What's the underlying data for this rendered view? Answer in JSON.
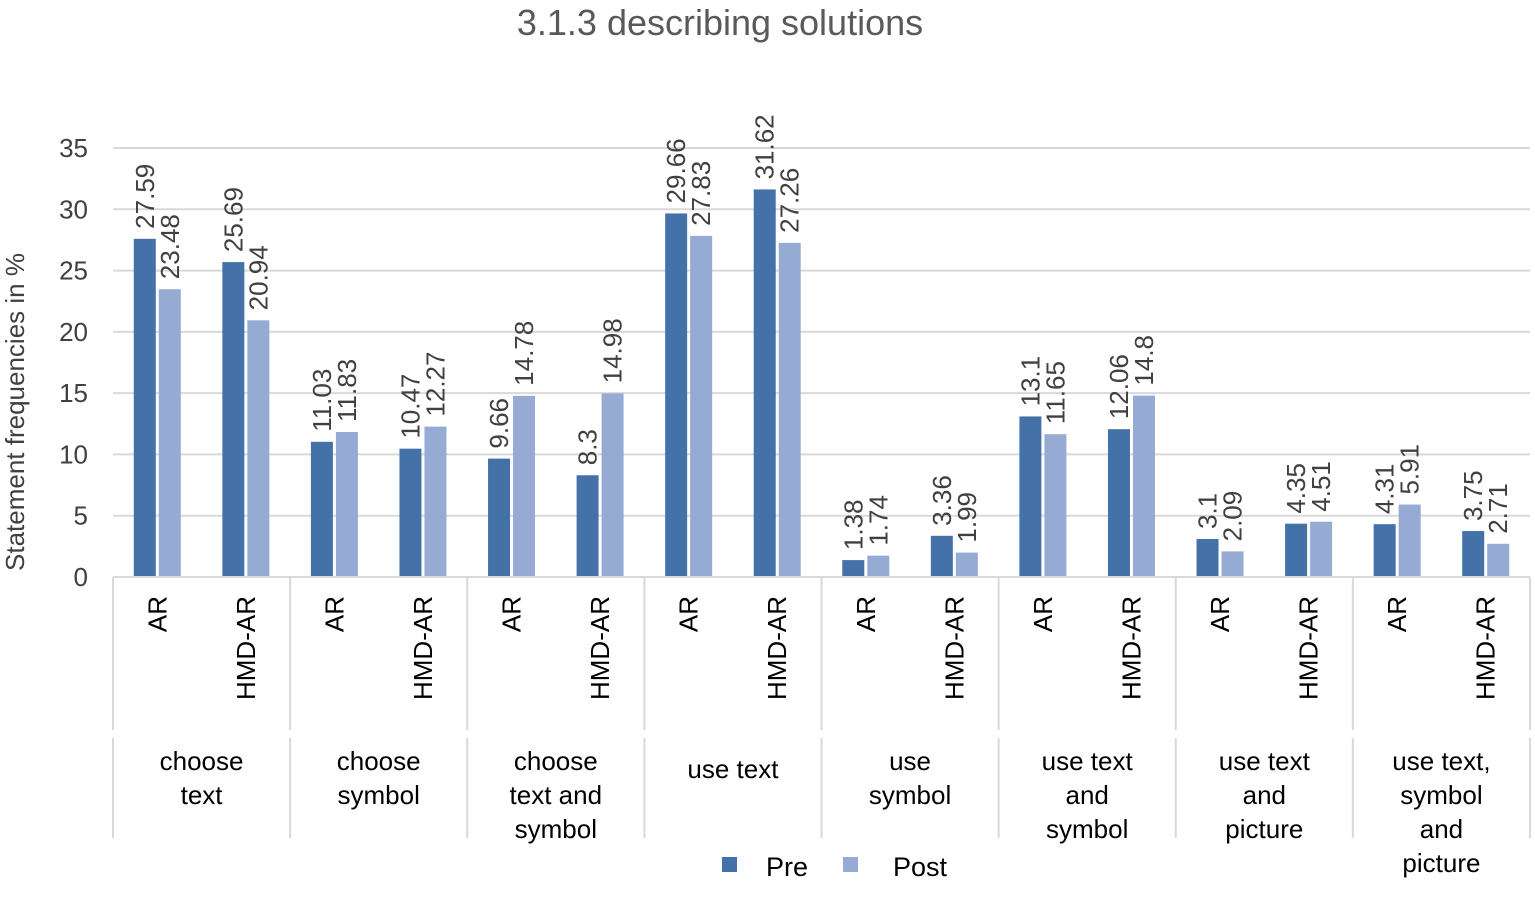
{
  "chart_data": {
    "type": "bar",
    "title": "3.1.3 describing solutions",
    "ylabel": "Statement frequencies in %",
    "ylim": [
      0,
      35
    ],
    "yticks": [
      0,
      5,
      10,
      15,
      20,
      25,
      30,
      35
    ],
    "grid": true,
    "legend_position": "bottom",
    "groups": [
      {
        "label": "choose text",
        "lines": [
          "choose",
          "text"
        ]
      },
      {
        "label": "choose symbol",
        "lines": [
          "choose",
          "symbol"
        ]
      },
      {
        "label": "choose text and symbol",
        "lines": [
          "choose",
          "text and",
          "symbol"
        ]
      },
      {
        "label": "use text",
        "lines": [
          "use text"
        ]
      },
      {
        "label": "use symbol",
        "lines": [
          "use",
          "symbol"
        ]
      },
      {
        "label": "use text and symbol",
        "lines": [
          "use text",
          "and",
          "symbol"
        ]
      },
      {
        "label": "use text and picture",
        "lines": [
          "use text",
          "and",
          "picture"
        ]
      },
      {
        "label": "use text, symbol and picture",
        "lines": [
          "use text,",
          "symbol",
          "and",
          "picture"
        ]
      }
    ],
    "subcategories": [
      "AR",
      "HMD-AR"
    ],
    "series": [
      {
        "name": "Pre",
        "color": "#4472a8",
        "values": [
          27.59,
          25.69,
          11.03,
          10.47,
          9.66,
          8.3,
          29.66,
          31.62,
          1.38,
          3.36,
          13.1,
          12.06,
          3.1,
          4.35,
          4.31,
          3.75
        ]
      },
      {
        "name": "Post",
        "color": "#95abd3",
        "values": [
          23.48,
          20.94,
          11.83,
          12.27,
          14.78,
          14.98,
          27.83,
          27.26,
          1.74,
          1.99,
          11.65,
          14.8,
          2.09,
          4.51,
          5.91,
          2.71
        ]
      }
    ]
  }
}
